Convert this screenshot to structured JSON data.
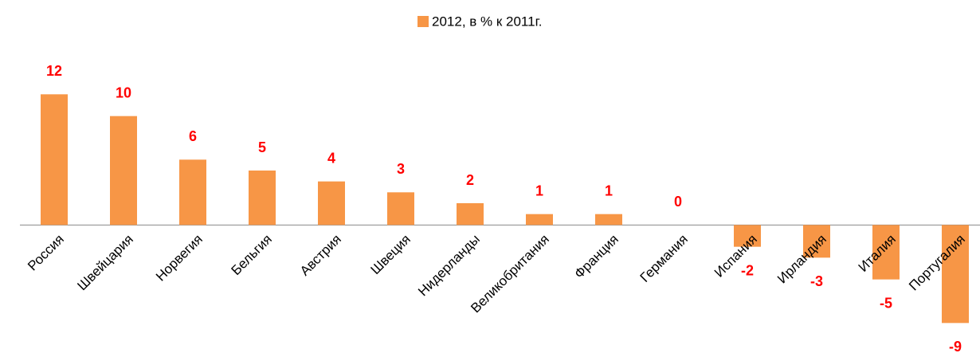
{
  "chart_data": {
    "type": "bar",
    "legend": "2012, в % к 2011г.",
    "categories": [
      "Россия",
      "Швейцария",
      "Норвегия",
      "Бельгия",
      "Австрия",
      "Швеция",
      "Нидерланды",
      "Великобритания",
      "Франция",
      "Германия",
      "Испания",
      "Ирландия",
      "Италия",
      "Португалия"
    ],
    "values": [
      12,
      10,
      6,
      5,
      4,
      3,
      2,
      1,
      1,
      0,
      -2,
      -3,
      -5,
      -9
    ],
    "color": "#f79646",
    "label_color": "#ff0000",
    "ylim": [
      -10,
      14
    ]
  }
}
